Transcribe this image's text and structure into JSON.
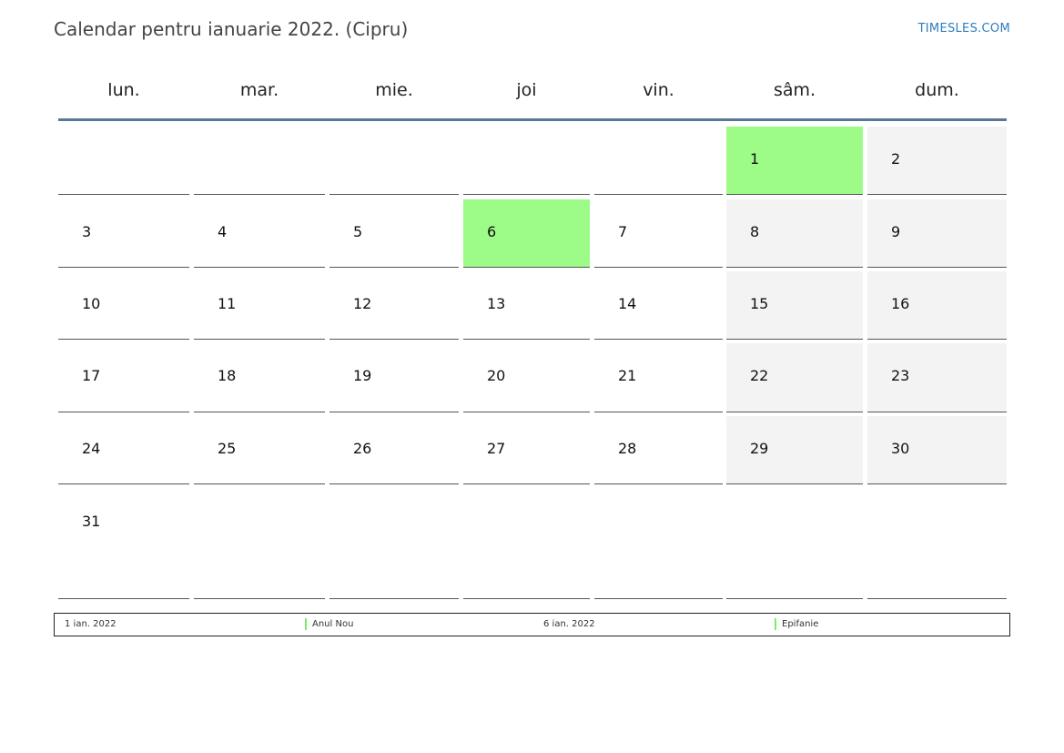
{
  "title": "Calendar pentru ianuarie 2022. (Cipru)",
  "site_link": "TIMESLES.COM",
  "colors": {
    "holiday": "#9dfc88",
    "weekend": "#f3f3f3",
    "header_rule": "#5a7796",
    "link": "#2f7cc0"
  },
  "weekdays": [
    "lun.",
    "mar.",
    "mie.",
    "joi",
    "vin.",
    "sâm.",
    "dum."
  ],
  "weeks": [
    [
      {
        "day": ""
      },
      {
        "day": ""
      },
      {
        "day": ""
      },
      {
        "day": ""
      },
      {
        "day": ""
      },
      {
        "day": "1",
        "holiday": true
      },
      {
        "day": "2"
      }
    ],
    [
      {
        "day": "3"
      },
      {
        "day": "4"
      },
      {
        "day": "5"
      },
      {
        "day": "6",
        "holiday": true
      },
      {
        "day": "7"
      },
      {
        "day": "8"
      },
      {
        "day": "9"
      }
    ],
    [
      {
        "day": "10"
      },
      {
        "day": "11"
      },
      {
        "day": "12"
      },
      {
        "day": "13"
      },
      {
        "day": "14"
      },
      {
        "day": "15"
      },
      {
        "day": "16"
      }
    ],
    [
      {
        "day": "17"
      },
      {
        "day": "18"
      },
      {
        "day": "19"
      },
      {
        "day": "20"
      },
      {
        "day": "21"
      },
      {
        "day": "22"
      },
      {
        "day": "23"
      }
    ],
    [
      {
        "day": "24"
      },
      {
        "day": "25"
      },
      {
        "day": "26"
      },
      {
        "day": "27"
      },
      {
        "day": "28"
      },
      {
        "day": "29"
      },
      {
        "day": "30"
      }
    ],
    [
      {
        "day": "31"
      },
      {
        "day": ""
      },
      {
        "day": ""
      },
      {
        "day": ""
      },
      {
        "day": ""
      },
      {
        "day": ""
      },
      {
        "day": ""
      }
    ]
  ],
  "legend": [
    {
      "date": "1 ian. 2022",
      "name": "Anul Nou"
    },
    {
      "date": "6 ian. 2022",
      "name": "Epifanie"
    }
  ]
}
